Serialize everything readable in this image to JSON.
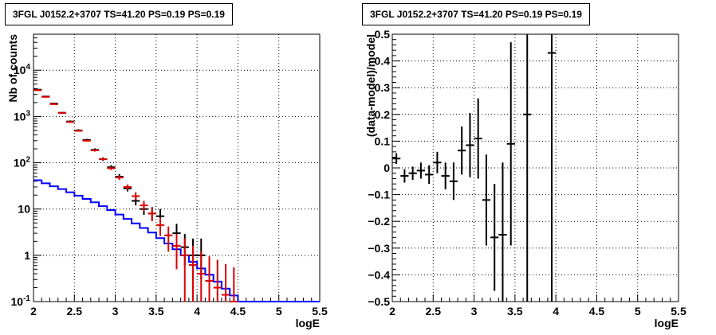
{
  "chart_data": [
    {
      "type": "histogram",
      "title": "3FGL J0152.2+3707 TS=41.20 PS=0.19 PS=0.19",
      "xlabel": "logE",
      "ylabel": "Nb of counts",
      "yscale": "log",
      "xlim": [
        2,
        5.5
      ],
      "ylim": [
        0.1,
        60000
      ],
      "grid": true,
      "x_ticks": [
        "2",
        "2.5",
        "3",
        "3.5",
        "4",
        "4.5",
        "5",
        "5.5"
      ],
      "y_ticks": [
        {
          "base": "10",
          "exp": "-1",
          "value": 0.1
        },
        {
          "base": "1",
          "exp": "",
          "value": 1
        },
        {
          "base": "10",
          "exp": "",
          "value": 10
        },
        {
          "base": "10",
          "exp": "2",
          "value": 100
        },
        {
          "base": "10",
          "exp": "3",
          "value": 1000
        },
        {
          "base": "10",
          "exp": "4",
          "value": 10000
        }
      ],
      "series": [
        {
          "kind": "steps",
          "color": "#0000ff",
          "x_edges": [
            2.0,
            2.1,
            2.2,
            2.3,
            2.4,
            2.5,
            2.6,
            2.7,
            2.8,
            2.9,
            3.0,
            3.1,
            3.2,
            3.3,
            3.4,
            3.5,
            3.6,
            3.7,
            3.8,
            3.9,
            4.0,
            4.1,
            4.2,
            4.3,
            4.4,
            4.5,
            4.6,
            4.7,
            4.8,
            4.9,
            5.0,
            5.1,
            5.2,
            5.3,
            5.4,
            5.5
          ],
          "values": [
            42,
            36,
            31,
            27,
            23,
            19.5,
            16.5,
            14,
            11.5,
            9.5,
            7.6,
            6.1,
            4.9,
            3.9,
            3.1,
            2.35,
            1.8,
            1.35,
            1.0,
            0.72,
            0.52,
            0.38,
            0.27,
            0.19,
            0.135,
            0.1,
            0.1,
            0.1,
            0.1,
            0.1,
            0.1,
            0.1,
            0.1,
            0.1,
            0.1
          ]
        },
        {
          "kind": "errorbars",
          "color": "#000000",
          "x": [
            2.05,
            2.15,
            2.25,
            2.35,
            2.45,
            2.55,
            2.65,
            2.75,
            2.85,
            2.95,
            3.05,
            3.15,
            3.25,
            3.35,
            3.45,
            3.55,
            3.75,
            3.85,
            3.95,
            4.05
          ],
          "y": [
            3800,
            2700,
            1900,
            1200,
            780,
            500,
            310,
            190,
            120,
            80,
            50,
            28,
            15,
            10,
            8,
            7,
            3,
            1.5,
            1,
            1
          ],
          "ylo": [
            3680,
            2600,
            1830,
            1140,
            740,
            470,
            290,
            175,
            110,
            72,
            44,
            24,
            12,
            7.5,
            5.5,
            4.5,
            1.6,
            0.6,
            0.3,
            0.3
          ],
          "yhi": [
            3920,
            2800,
            1970,
            1260,
            820,
            530,
            330,
            205,
            131,
            89,
            57,
            33,
            19,
            13,
            11,
            10,
            4.8,
            2.9,
            2.3,
            2.3
          ]
        },
        {
          "kind": "errorbars",
          "color": "#dd0000",
          "x": [
            2.05,
            2.15,
            2.25,
            2.35,
            2.45,
            2.55,
            2.65,
            2.75,
            2.85,
            2.95,
            3.05,
            3.15,
            3.25,
            3.35,
            3.45,
            3.55,
            3.65,
            3.75,
            3.85,
            3.95,
            4.05,
            4.15,
            4.25,
            4.35,
            4.45
          ],
          "y": [
            3700,
            2650,
            1850,
            1200,
            760,
            490,
            300,
            185,
            120,
            76,
            48,
            30,
            19,
            12,
            8,
            4.5,
            2.7,
            1.6,
            1.0,
            0.62,
            0.4,
            0.28,
            0.2,
            0.14,
            0.1
          ],
          "ylo": [
            3600,
            2580,
            1800,
            1160,
            730,
            470,
            285,
            175,
            112,
            70,
            43,
            26,
            15.5,
            9,
            5.5,
            2.6,
            1.2,
            0.5,
            0.1,
            0.1,
            0.1,
            0.1,
            0.1,
            0.1,
            0.1
          ],
          "yhi": [
            3800,
            2720,
            1900,
            1240,
            790,
            510,
            315,
            195,
            128,
            82,
            53,
            34,
            23,
            15,
            10.5,
            6.4,
            4.2,
            2.9,
            2.3,
            1.6,
            1.2,
            0.95,
            0.8,
            0.65,
            0.55
          ]
        }
      ]
    },
    {
      "type": "scatter",
      "title": "3FGL J0152.2+3707 TS=41.20 PS=0.19 PS=0.19",
      "xlabel": "logE",
      "ylabel": "(data-model)/model",
      "xlim": [
        2,
        5.5
      ],
      "ylim": [
        -0.5,
        0.5
      ],
      "grid": true,
      "x_ticks": [
        "2",
        "2.5",
        "3",
        "3.5",
        "4",
        "4.5",
        "5",
        "5.5"
      ],
      "y_ticks": [
        "-0.5",
        "-0.4",
        "-0.3",
        "-0.2",
        "-0.1",
        "0",
        "0.1",
        "0.2",
        "0.3",
        "0.4",
        "0.5"
      ],
      "series": [
        {
          "kind": "errorbars",
          "color": "#000000",
          "x": [
            2.05,
            2.15,
            2.25,
            2.35,
            2.45,
            2.55,
            2.65,
            2.75,
            2.85,
            2.95,
            3.05,
            3.15,
            3.25,
            3.35,
            3.45,
            3.65,
            3.95
          ],
          "y": [
            0.035,
            -0.03,
            -0.02,
            -0.01,
            -0.025,
            0.02,
            -0.03,
            -0.05,
            0.065,
            0.085,
            0.11,
            -0.12,
            -0.26,
            -0.25,
            0.09,
            0.2,
            0.43
          ],
          "yerr": [
            0.02,
            0.025,
            0.025,
            0.03,
            0.035,
            0.04,
            0.05,
            0.07,
            0.09,
            0.12,
            0.15,
            0.17,
            0.2,
            0.27,
            0.38,
            0.7,
            1.0
          ]
        }
      ]
    }
  ]
}
